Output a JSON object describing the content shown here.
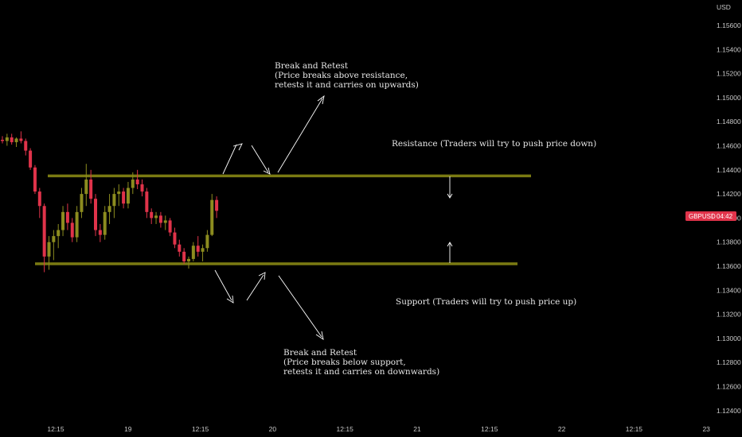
{
  "chart_data": {
    "type": "candlestick",
    "currency": "USD",
    "symbol": "GBPUSD",
    "countdown": "04:42",
    "y_ticks": [
      "1.15600",
      "1.15400",
      "1.15200",
      "1.15000",
      "1.14800",
      "1.14600",
      "1.14400",
      "1.14200",
      "1.14000",
      "1.13800",
      "1.13600",
      "1.13400",
      "1.13200",
      "1.13000",
      "1.12800",
      "1.12600",
      "1.12400"
    ],
    "x_ticks": [
      "12:15",
      "19",
      "12:15",
      "20",
      "12:15",
      "21",
      "12:15",
      "22",
      "12:15",
      "23"
    ],
    "ylim": [
      1.1233,
      1.1582
    ],
    "resistance": 1.1435,
    "support": 1.1362,
    "colors": {
      "up": "#8c8c1f",
      "down": "#e0334a",
      "level": "#7a7a12",
      "tag": "#e0334a"
    },
    "annotations": {
      "resistance_label": "Resistance (Traders will try to push price down)",
      "support_label": "Support (Traders will try to push price up)",
      "upper_title": "Break and Retest",
      "upper_line1": "(Price breaks above resistance,",
      "upper_line2": "retests it and carries on upwards)",
      "lower_title": "Break and Retest",
      "lower_line1": "(Price breaks below support,",
      "lower_line2": "retests it and carries on downwards)"
    },
    "candles": [
      [
        1.1465,
        1.1468,
        1.1462,
        1.1464
      ],
      [
        1.1464,
        1.147,
        1.146,
        1.1467
      ],
      [
        1.1467,
        1.147,
        1.1461,
        1.1463
      ],
      [
        1.1463,
        1.1467,
        1.1459,
        1.1466
      ],
      [
        1.1466,
        1.1472,
        1.1462,
        1.1464
      ],
      [
        1.1464,
        1.1466,
        1.1452,
        1.1456
      ],
      [
        1.1456,
        1.1458,
        1.144,
        1.1442
      ],
      [
        1.1442,
        1.1444,
        1.142,
        1.1422
      ],
      [
        1.1422,
        1.1425,
        1.14,
        1.141
      ],
      [
        1.141,
        1.1412,
        1.1355,
        1.1368
      ],
      [
        1.1368,
        1.1385,
        1.1357,
        1.138
      ],
      [
        1.138,
        1.139,
        1.1365,
        1.1385
      ],
      [
        1.1385,
        1.1395,
        1.1375,
        1.139
      ],
      [
        1.139,
        1.141,
        1.1385,
        1.1405
      ],
      [
        1.1405,
        1.1412,
        1.139,
        1.1396
      ],
      [
        1.1396,
        1.14,
        1.138,
        1.1384
      ],
      [
        1.1384,
        1.141,
        1.138,
        1.1405
      ],
      [
        1.1405,
        1.1425,
        1.14,
        1.142
      ],
      [
        1.142,
        1.1445,
        1.141,
        1.1432
      ],
      [
        1.1432,
        1.144,
        1.1412,
        1.1416
      ],
      [
        1.1416,
        1.142,
        1.1385,
        1.139
      ],
      [
        1.139,
        1.1395,
        1.138,
        1.1386
      ],
      [
        1.1386,
        1.141,
        1.1382,
        1.1405
      ],
      [
        1.1405,
        1.142,
        1.1395,
        1.141
      ],
      [
        1.141,
        1.1425,
        1.14,
        1.142
      ],
      [
        1.142,
        1.1428,
        1.141,
        1.1422
      ],
      [
        1.1422,
        1.1425,
        1.1408,
        1.1412
      ],
      [
        1.1412,
        1.143,
        1.1408,
        1.1425
      ],
      [
        1.1425,
        1.1438,
        1.142,
        1.1432
      ],
      [
        1.1432,
        1.144,
        1.1424,
        1.1428
      ],
      [
        1.1428,
        1.1432,
        1.1418,
        1.1422
      ],
      [
        1.1422,
        1.1425,
        1.14,
        1.1405
      ],
      [
        1.1405,
        1.1408,
        1.1395,
        1.14
      ],
      [
        1.14,
        1.1405,
        1.1395,
        1.1402
      ],
      [
        1.1402,
        1.1405,
        1.1392,
        1.1396
      ],
      [
        1.1396,
        1.1402,
        1.139,
        1.1398
      ],
      [
        1.1398,
        1.14,
        1.1385,
        1.1388
      ],
      [
        1.1388,
        1.1392,
        1.1375,
        1.1378
      ],
      [
        1.1378,
        1.1382,
        1.1368,
        1.1372
      ],
      [
        1.1372,
        1.1375,
        1.1362,
        1.1364
      ],
      [
        1.1364,
        1.1368,
        1.1358,
        1.1366
      ],
      [
        1.1366,
        1.138,
        1.1364,
        1.1377
      ],
      [
        1.1377,
        1.1385,
        1.1368,
        1.1372
      ],
      [
        1.1372,
        1.1378,
        1.1364,
        1.1375
      ],
      [
        1.1375,
        1.139,
        1.1372,
        1.1386
      ],
      [
        1.1386,
        1.142,
        1.1385,
        1.1415
      ],
      [
        1.1415,
        1.1418,
        1.14,
        1.1406
      ]
    ]
  }
}
